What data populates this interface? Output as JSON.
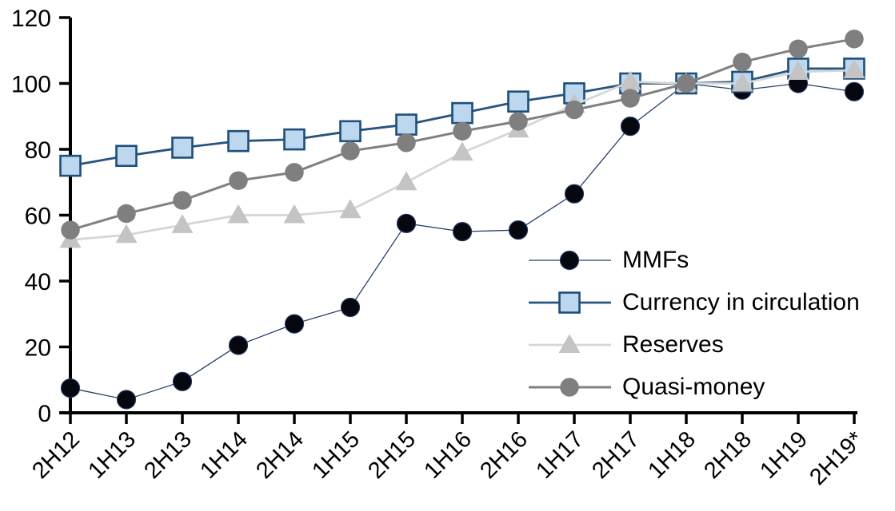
{
  "chart_data": {
    "type": "line",
    "title": "",
    "xlabel": "",
    "ylabel": "",
    "categories": [
      "2H12",
      "1H13",
      "2H13",
      "1H14",
      "2H14",
      "1H15",
      "2H15",
      "1H16",
      "2H16",
      "1H17",
      "2H17",
      "1H18",
      "2H18",
      "1H19",
      "2H19*"
    ],
    "series": [
      {
        "name": "MMFs",
        "marker": "circle",
        "marker_size": 23,
        "marker_fill": "#07080f",
        "marker_stroke": "#1f3864",
        "marker_stroke_width": 1.2,
        "line_color": "#26406b",
        "line_width": 1.3,
        "values": [
          7.5,
          4,
          9.5,
          20.5,
          27,
          32,
          57.5,
          55,
          55.5,
          66.5,
          87,
          100,
          98,
          100,
          97.5
        ]
      },
      {
        "name": "Currency in circulation",
        "marker": "square",
        "marker_size": 25,
        "marker_fill": "#bdd7ee",
        "marker_stroke": "#1f4e79",
        "marker_stroke_width": 2.6,
        "line_color": "#27547f",
        "line_width": 2.8,
        "values": [
          75,
          78,
          80.5,
          82.5,
          83,
          85.5,
          87.5,
          91,
          94.5,
          97,
          100,
          100,
          100.5,
          104.5,
          104.5
        ]
      },
      {
        "name": "Reserves",
        "marker": "triangle",
        "marker_size": 27,
        "marker_fill": "#c4c4c4",
        "marker_stroke": "none",
        "marker_stroke_width": 0,
        "line_color": "#d6d6d6",
        "line_width": 2.8,
        "values": [
          52.5,
          54,
          57,
          60,
          60,
          61.5,
          70,
          79,
          86,
          93.5,
          100.5,
          100,
          100,
          103.5,
          104
        ]
      },
      {
        "name": "Quasi-money",
        "marker": "circle",
        "marker_size": 23.5,
        "marker_fill": "#7f7f7f",
        "marker_stroke": "none",
        "marker_stroke_width": 0,
        "line_color": "#808080",
        "line_width": 3,
        "values": [
          55.5,
          60.5,
          64.5,
          70.5,
          73,
          79.5,
          82,
          85.5,
          88.5,
          92,
          95.5,
          100,
          106.5,
          110.5,
          113.5
        ]
      }
    ],
    "ylim": [
      0,
      120
    ],
    "yticks": [
      0,
      20,
      40,
      60,
      80,
      100,
      120
    ],
    "x_label_rotation_deg": 45,
    "grid": false,
    "legend_position": "inside-right",
    "axis_color": "#000000",
    "text_color": "#000000",
    "ytick_font_size": 30,
    "xtick_font_size": 29
  }
}
